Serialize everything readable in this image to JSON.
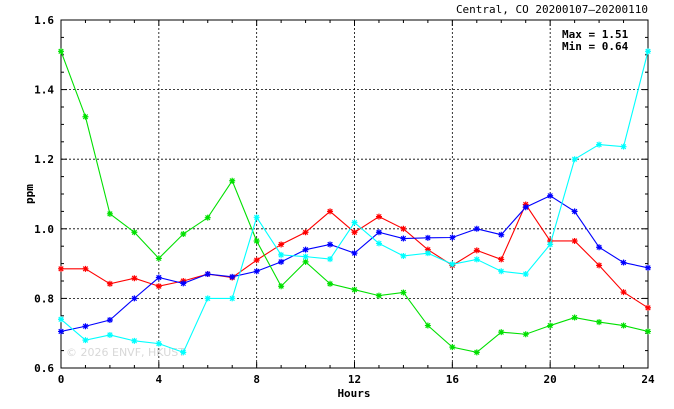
{
  "chart_data": {
    "type": "line",
    "title": "Central, CO 20200107–20200110",
    "xlabel": "Hours",
    "ylabel": "ppm",
    "xlim": [
      0,
      24
    ],
    "ylim": [
      0.6,
      1.6
    ],
    "xticks": [
      "0",
      "4",
      "8",
      "12",
      "16",
      "20",
      "24"
    ],
    "yticks": [
      "0.6",
      "0.8",
      "1.0",
      "1.2",
      "1.4",
      "1.6"
    ],
    "grid": true,
    "stats": {
      "max_label": "Max = 1.51",
      "min_label": "Min = 0.64"
    },
    "watermark": "© 2026  ENVF, HKUST",
    "x": [
      0,
      1,
      2,
      3,
      4,
      5,
      6,
      7,
      8,
      9,
      10,
      11,
      12,
      13,
      14,
      15,
      16,
      17,
      18,
      19,
      20,
      21,
      22,
      23,
      24
    ],
    "series": [
      {
        "color": "#ff0000",
        "values": [
          0.885,
          0.885,
          0.842,
          0.858,
          0.835,
          0.85,
          0.87,
          0.86,
          0.91,
          0.955,
          0.99,
          1.05,
          0.99,
          1.035,
          1.0,
          0.94,
          0.895,
          0.938,
          0.912,
          1.07,
          0.965,
          0.965,
          0.895,
          0.818,
          0.773
        ]
      },
      {
        "color": "#0000ff",
        "values": [
          0.705,
          0.72,
          0.738,
          0.8,
          0.86,
          0.843,
          0.87,
          0.862,
          0.878,
          0.905,
          0.94,
          0.955,
          0.93,
          0.99,
          0.972,
          0.974,
          0.975,
          1.0,
          0.983,
          1.062,
          1.095,
          1.05,
          0.947,
          0.903,
          0.888
        ]
      },
      {
        "color": "#00e000",
        "values": [
          1.51,
          1.322,
          1.043,
          0.99,
          0.915,
          0.985,
          1.032,
          1.138,
          0.965,
          0.835,
          0.905,
          0.842,
          0.825,
          0.808,
          0.817,
          0.722,
          0.66,
          0.645,
          0.703,
          0.697,
          0.722,
          0.745,
          0.732,
          0.722,
          0.705
        ]
      },
      {
        "color": "#00ffff",
        "values": [
          0.74,
          0.68,
          0.695,
          0.678,
          0.67,
          0.645,
          0.8,
          0.8,
          1.033,
          0.925,
          0.92,
          0.913,
          1.018,
          0.958,
          0.922,
          0.93,
          0.898,
          0.912,
          0.878,
          0.87,
          0.955,
          1.2,
          1.242,
          1.236,
          1.51
        ]
      }
    ]
  }
}
